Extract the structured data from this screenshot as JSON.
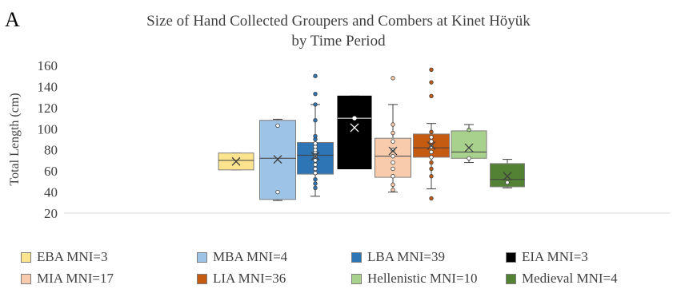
{
  "panel_label": "A",
  "chart_data": {
    "type": "box",
    "title": "Size of Hand Collected Groupers and Combers at Kinet Höyük",
    "subtitle": "by Time Period",
    "ylabel": "Total Length (cm)",
    "xlabel": "",
    "ylim": [
      20,
      160
    ],
    "yticks": [
      20,
      40,
      60,
      80,
      100,
      120,
      140,
      160
    ],
    "grid": false,
    "legend_position": "bottom",
    "series": [
      {
        "name": "EBA MNI=3",
        "color": "#fce48f",
        "edge": "#7f7f7f",
        "min": 61,
        "q1": 61,
        "median": 70,
        "q3": 77,
        "max": 77,
        "mean": 69,
        "points": []
      },
      {
        "name": "MBA MNI=4",
        "color": "#9dc3e6",
        "edge": "#7f7f7f",
        "min": 32,
        "q1": 33,
        "median": 72,
        "q3": 108,
        "max": 109,
        "mean": 71,
        "points": [
          40,
          103
        ]
      },
      {
        "name": "LBA MNI=39",
        "color": "#2e75b6",
        "edge": "#7f7f7f",
        "min": 36,
        "q1": 57,
        "median": 75,
        "q3": 87,
        "max": 123,
        "mean": 74,
        "points": [
          44,
          48,
          52,
          58,
          62,
          66,
          70,
          74,
          78,
          80,
          83,
          86,
          90,
          93,
          108,
          123,
          133,
          150
        ]
      },
      {
        "name": "EIA MNI=3",
        "color": "#000000",
        "edge": "#000000",
        "min": 62,
        "q1": 62,
        "median": 110,
        "q3": 131,
        "max": 131,
        "mean": 101,
        "points": [
          110
        ]
      },
      {
        "name": "MIA MNI=17",
        "color": "#f8cbad",
        "edge": "#7f7f7f",
        "min": 40,
        "q1": 54,
        "median": 74,
        "q3": 91,
        "max": 123,
        "mean": 79,
        "points": [
          42,
          47,
          55,
          62,
          68,
          74,
          80,
          88,
          96,
          104,
          148
        ]
      },
      {
        "name": "LIA MNI=36",
        "color": "#c55a11",
        "edge": "#7f7f7f",
        "min": 43,
        "q1": 73,
        "median": 82,
        "q3": 95,
        "max": 105,
        "mean": 84,
        "points": [
          34,
          55,
          62,
          68,
          73,
          78,
          83,
          88,
          92,
          97,
          131,
          144,
          156
        ]
      },
      {
        "name": "Hellenistic MNI=10",
        "color": "#a9d18e",
        "edge": "#7f7f7f",
        "min": 68,
        "q1": 72,
        "median": 78,
        "q3": 98,
        "max": 104,
        "mean": 82,
        "points": [
          72,
          99
        ]
      },
      {
        "name": "Medieval MNI=4",
        "color": "#548235",
        "edge": "#7f7f7f",
        "min": 44,
        "q1": 45,
        "median": 52,
        "q3": 67,
        "max": 71,
        "mean": 55,
        "points": [
          49
        ]
      }
    ]
  }
}
